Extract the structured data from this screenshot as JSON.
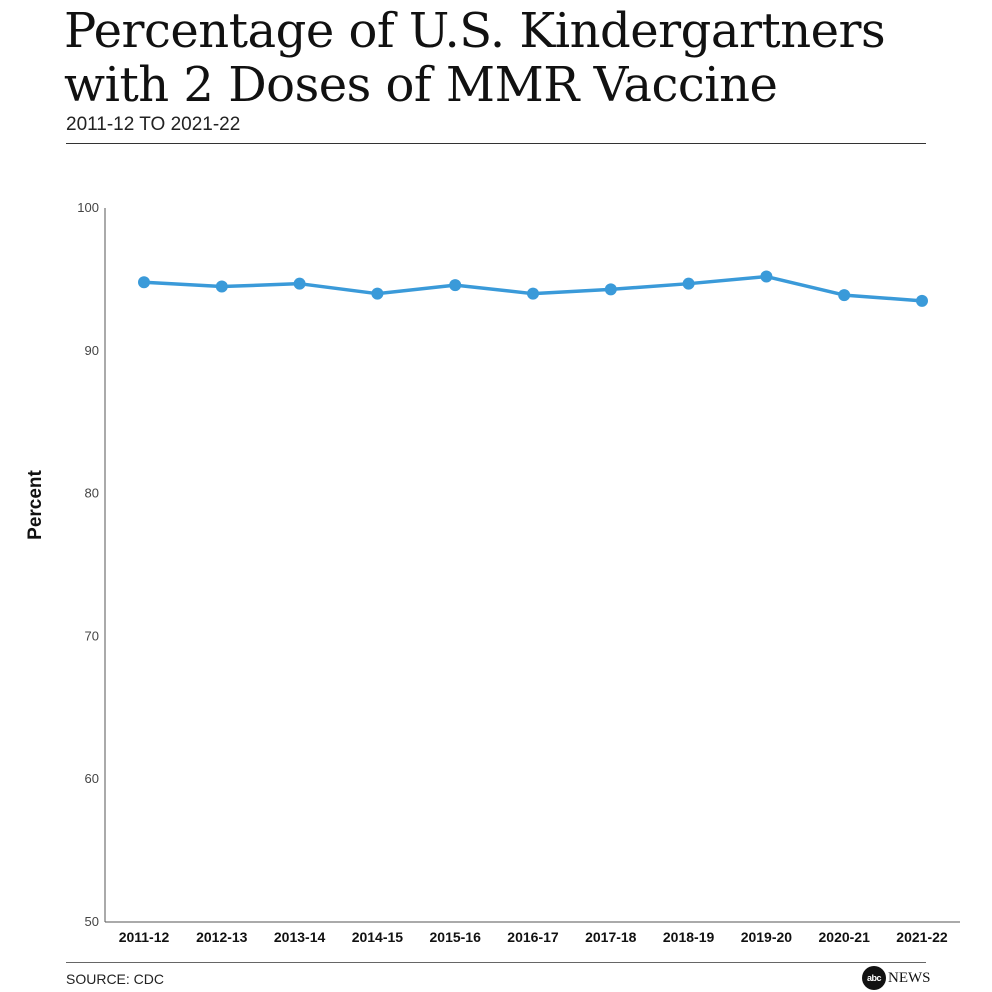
{
  "header": {
    "title": "Percentage of U.S. Kindergartners with 2 Doses of MMR Vaccine",
    "subtitle": "2011-12 TO 2021-22"
  },
  "footer": {
    "source": "SOURCE: CDC",
    "logo_mark": "abc",
    "logo_text": "NEWS"
  },
  "colors": {
    "line": "#3a9ad9",
    "axis": "#555555",
    "text": "#111111"
  },
  "chart_data": {
    "type": "line",
    "title": "Percentage of U.S. Kindergartners with 2 Doses of MMR Vaccine",
    "subtitle": "2011-12 TO 2021-22",
    "xlabel": "",
    "ylabel": "Percent",
    "categories": [
      "2011-12",
      "2012-13",
      "2013-14",
      "2014-15",
      "2015-16",
      "2016-17",
      "2017-18",
      "2018-19",
      "2019-20",
      "2020-21",
      "2021-22"
    ],
    "series": [
      {
        "values": [
          94.8,
          94.5,
          94.7,
          94.0,
          94.6,
          94.0,
          94.3,
          94.7,
          95.2,
          93.9,
          93.5
        ]
      }
    ],
    "yticks": [
      50,
      60,
      70,
      80,
      90,
      100
    ],
    "ylim": [
      50,
      100
    ],
    "grid": false,
    "legend": "none"
  }
}
